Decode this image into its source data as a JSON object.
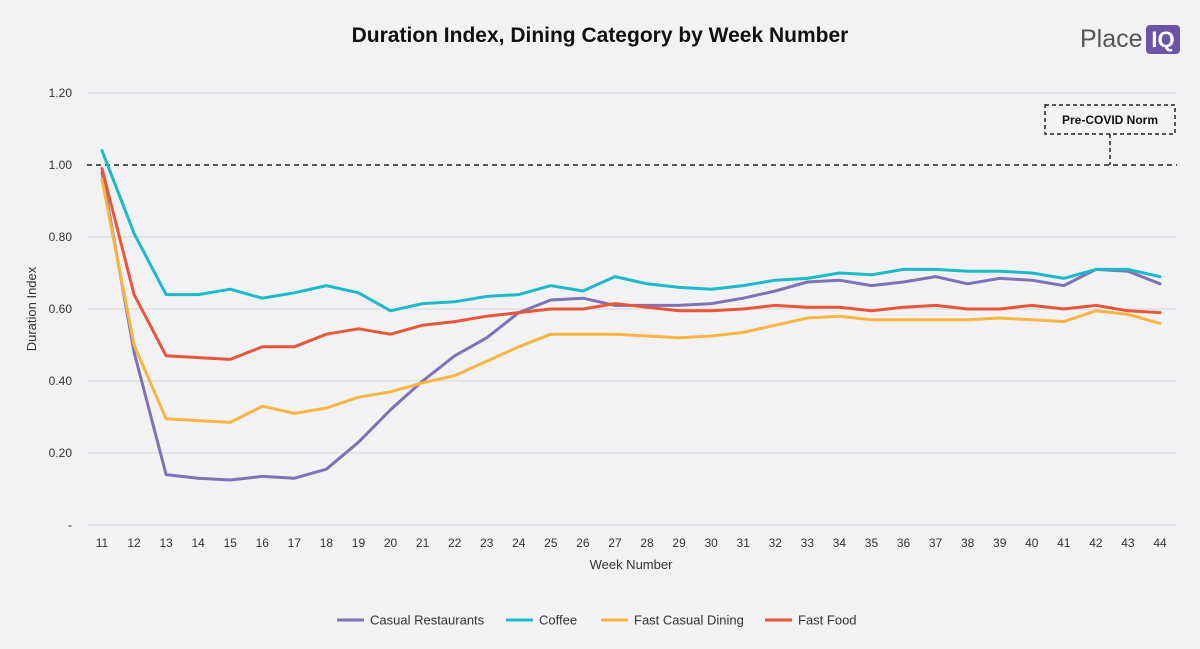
{
  "logo": {
    "text_left": "Place",
    "text_right": "IQ"
  },
  "chart_data": {
    "type": "line",
    "title": "Duration Index, Dining Category by Week Number",
    "xlabel": "Week Number",
    "ylabel": "Duration Index",
    "ylim": [
      0,
      1.2
    ],
    "yticks": [
      0,
      0.2,
      0.4,
      0.6,
      0.8,
      1.0,
      1.2
    ],
    "ytick_labels": [
      "-",
      "0.20",
      "0.40",
      "0.60",
      "0.80",
      "1.00",
      "1.20"
    ],
    "grid": true,
    "legend_position": "bottom",
    "x": [
      11,
      12,
      13,
      14,
      15,
      16,
      17,
      18,
      19,
      20,
      21,
      22,
      23,
      24,
      25,
      26,
      27,
      28,
      29,
      30,
      31,
      32,
      33,
      34,
      35,
      36,
      37,
      38,
      39,
      40,
      41,
      42,
      43,
      44
    ],
    "reference_line": {
      "value": 1.0,
      "label": "Pre-COVID Norm",
      "style": "dashed"
    },
    "series": [
      {
        "name": "Casual Restaurants",
        "color": "#8072b6",
        "values": [
          0.98,
          0.48,
          0.14,
          0.13,
          0.125,
          0.135,
          0.13,
          0.155,
          0.23,
          0.32,
          0.4,
          0.47,
          0.52,
          0.59,
          0.625,
          0.63,
          0.61,
          0.61,
          0.61,
          0.615,
          0.63,
          0.65,
          0.675,
          0.68,
          0.665,
          0.675,
          0.69,
          0.67,
          0.685,
          0.68,
          0.665,
          0.71,
          0.705,
          0.67
        ]
      },
      {
        "name": "Coffee",
        "color": "#1db8c9",
        "values": [
          1.04,
          0.81,
          0.64,
          0.64,
          0.655,
          0.63,
          0.645,
          0.665,
          0.645,
          0.595,
          0.615,
          0.62,
          0.635,
          0.64,
          0.665,
          0.65,
          0.69,
          0.67,
          0.66,
          0.655,
          0.665,
          0.68,
          0.685,
          0.7,
          0.695,
          0.71,
          0.71,
          0.705,
          0.705,
          0.7,
          0.685,
          0.71,
          0.71,
          0.69
        ]
      },
      {
        "name": "Fast Casual Dining",
        "color": "#f9b544",
        "values": [
          0.96,
          0.5,
          0.295,
          0.29,
          0.285,
          0.33,
          0.31,
          0.325,
          0.355,
          0.37,
          0.395,
          0.415,
          0.455,
          0.495,
          0.53,
          0.53,
          0.53,
          0.525,
          0.52,
          0.525,
          0.535,
          0.555,
          0.575,
          0.58,
          0.57,
          0.57,
          0.57,
          0.57,
          0.575,
          0.57,
          0.565,
          0.595,
          0.585,
          0.56
        ]
      },
      {
        "name": "Fast Food",
        "color": "#e8573a",
        "values": [
          0.99,
          0.64,
          0.47,
          0.465,
          0.46,
          0.495,
          0.495,
          0.53,
          0.545,
          0.53,
          0.555,
          0.565,
          0.58,
          0.59,
          0.6,
          0.6,
          0.615,
          0.605,
          0.595,
          0.595,
          0.6,
          0.61,
          0.605,
          0.605,
          0.595,
          0.605,
          0.61,
          0.6,
          0.6,
          0.61,
          0.6,
          0.61,
          0.595,
          0.59
        ]
      }
    ]
  }
}
